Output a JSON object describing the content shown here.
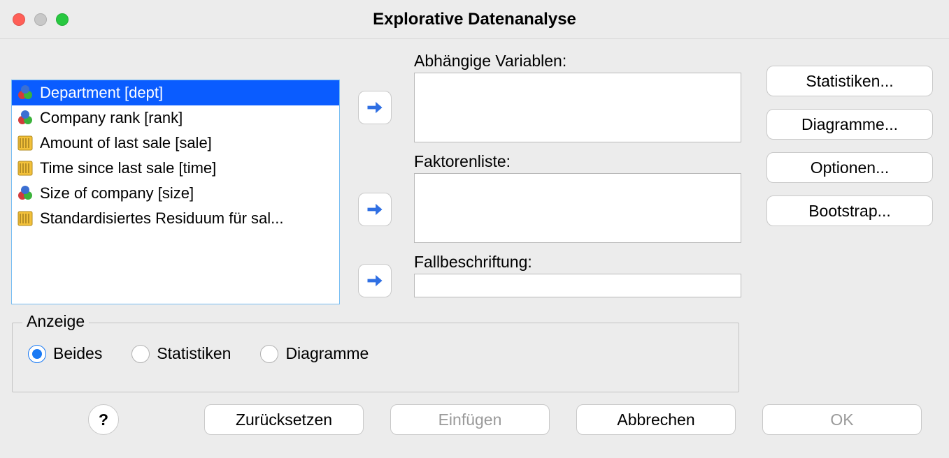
{
  "window": {
    "title": "Explorative Datenanalyse"
  },
  "variables": [
    {
      "label": "Department [dept]",
      "type": "nominal",
      "selected": true
    },
    {
      "label": "Company rank [rank]",
      "type": "nominal",
      "selected": false
    },
    {
      "label": "Amount of last sale [sale]",
      "type": "scale",
      "selected": false
    },
    {
      "label": "Time since last sale [time]",
      "type": "scale",
      "selected": false
    },
    {
      "label": "Size of company [size]",
      "type": "nominal",
      "selected": false
    },
    {
      "label": "Standardisiertes Residuum für sal...",
      "type": "scale",
      "selected": false
    }
  ],
  "targets": {
    "dependent_label": "Abhängige Variablen:",
    "factors_label": "Faktorenliste:",
    "caselabel_label": "Fallbeschriftung:"
  },
  "side_buttons": {
    "stats": "Statistiken...",
    "plots": "Diagramme...",
    "options": "Optionen...",
    "bootstrap": "Bootstrap..."
  },
  "anzeige": {
    "legend": "Anzeige",
    "options": [
      "Beides",
      "Statistiken",
      "Diagramme"
    ],
    "selected": 0
  },
  "bottom": {
    "help": "?",
    "reset": "Zurücksetzen",
    "paste": "Einfügen",
    "cancel": "Abbrechen",
    "ok": "OK"
  },
  "colors": {
    "selection": "#0a5cff",
    "accent": "#1a7af4",
    "arrow": "#2f6fe3"
  }
}
